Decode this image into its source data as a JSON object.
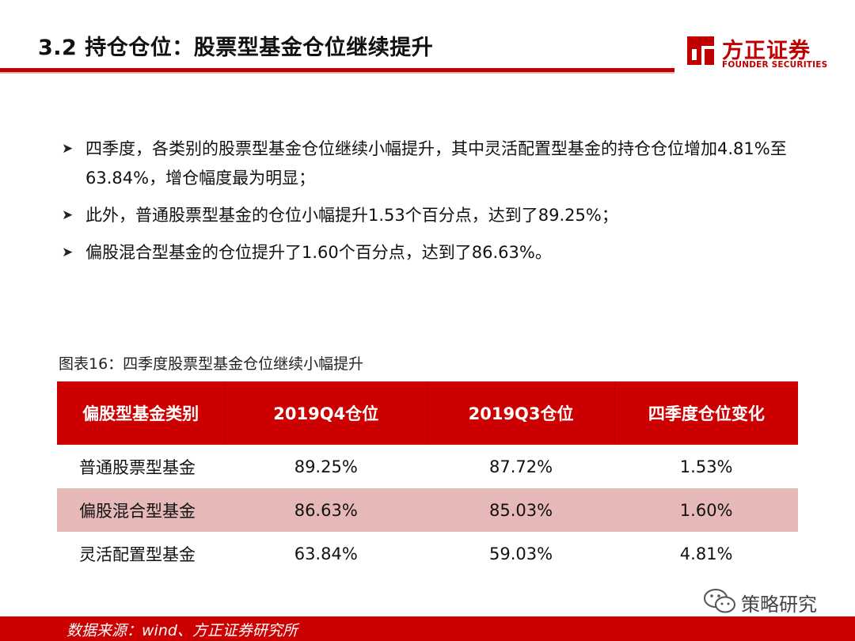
{
  "header": {
    "title": "3.2 持仓仓位：股票型基金仓位继续提升",
    "logo_text": "方正证券",
    "logo_sub": "FOUNDER SECURITIES"
  },
  "bullets": [
    {
      "text": "四季度，各类别的股票型基金仓位继续小幅提升，其中灵活配置型基金的持仓仓位增加4.81%至63.84%，增仓幅度最为明显；"
    },
    {
      "text": "此外，普通股票型基金的仓位小幅提升1.53个百分点，达到了89.25%；"
    },
    {
      "text": "偏股混合型基金的仓位提升了1.60个百分点，达到了86.63%。"
    }
  ],
  "table": {
    "caption": "图表16：四季度股票型基金仓位继续小幅提升",
    "headers": [
      "偏股型基金类别",
      "2019Q4仓位",
      "2019Q3仓位",
      "四季度仓位变化"
    ],
    "rows": [
      [
        "普通股票型基金",
        "89.25%",
        "87.72%",
        "1.53%"
      ],
      [
        "偏股混合型基金",
        "86.63%",
        "85.03%",
        "1.60%"
      ],
      [
        "灵活配置型基金",
        "63.84%",
        "59.03%",
        "4.81%"
      ]
    ]
  },
  "watermark": {
    "text": "策略研究"
  },
  "footer": {
    "source": "数据来源：wind、方正证券研究所"
  },
  "colors": {
    "accent": "#cc0000",
    "shade": "#e6b8b8"
  }
}
